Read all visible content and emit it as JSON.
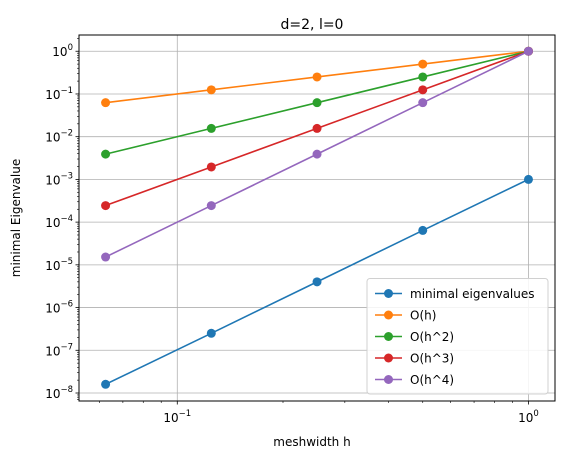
{
  "chart_data": {
    "type": "line",
    "title": "d=2, l=0",
    "xlabel": "meshwidth h",
    "ylabel": "minimal Eigenvalue",
    "xscale": "log",
    "yscale": "log",
    "xlim": [
      0.0525,
      1.19
    ],
    "ylim": [
      6.5e-09,
      2.4
    ],
    "grid": true,
    "legend_location": "lower right",
    "x": [
      0.0625,
      0.125,
      0.25,
      0.5,
      1.0
    ],
    "x_ticks": [
      {
        "value": 0.1,
        "label": "10",
        "exp": "−1"
      },
      {
        "value": 1.0,
        "label": "10",
        "exp": "0"
      }
    ],
    "y_ticks": [
      {
        "value": 1e-08,
        "label": "10",
        "exp": "−8"
      },
      {
        "value": 1e-07,
        "label": "10",
        "exp": "−7"
      },
      {
        "value": 1e-06,
        "label": "10",
        "exp": "−6"
      },
      {
        "value": 1e-05,
        "label": "10",
        "exp": "−5"
      },
      {
        "value": 0.0001,
        "label": "10",
        "exp": "−4"
      },
      {
        "value": 0.001,
        "label": "10",
        "exp": "−3"
      },
      {
        "value": 0.01,
        "label": "10",
        "exp": "−2"
      },
      {
        "value": 0.1,
        "label": "10",
        "exp": "−1"
      },
      {
        "value": 1.0,
        "label": "10",
        "exp": "0"
      }
    ],
    "series": [
      {
        "name": "minimal eigenvalues",
        "color": "#1f77b4",
        "values": [
          1.6e-08,
          2.5e-07,
          4e-06,
          6.4e-05,
          0.001
        ]
      },
      {
        "name": "O(h)",
        "color": "#ff7f0e",
        "values": [
          0.0625,
          0.125,
          0.25,
          0.5,
          1.0
        ]
      },
      {
        "name": "O(h^2)",
        "color": "#2ca02c",
        "values": [
          0.00390625,
          0.015625,
          0.0625,
          0.25,
          1.0
        ]
      },
      {
        "name": "O(h^3)",
        "color": "#d62728",
        "values": [
          0.000244140625,
          0.001953125,
          0.015625,
          0.125,
          1.0
        ]
      },
      {
        "name": "O(h^4)",
        "color": "#9467bd",
        "values": [
          1.52587890625e-05,
          0.000244140625,
          0.00390625,
          0.0625,
          1.0
        ]
      }
    ]
  }
}
